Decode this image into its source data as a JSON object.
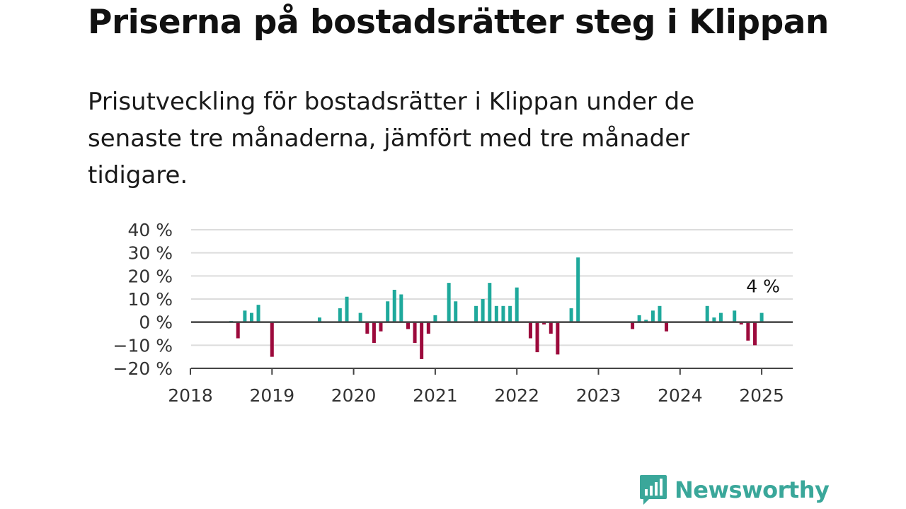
{
  "header": {
    "title": "Priserna på bostadsrätter steg i Klippan",
    "subtitle": "Prisutveckling för bostadsrätter i Klippan under de senaste tre månaderna, jämfört med tre månader tidigare."
  },
  "brand": {
    "name": "Newsworthy",
    "icon": "newsworthy-logo-icon",
    "color": "#3aa79a"
  },
  "chart_data": {
    "type": "bar",
    "y_tick_labels": [
      "40 %",
      "30 %",
      "20 %",
      "10 %",
      "0 %",
      "−10 %",
      "−20 %"
    ],
    "y_ticks": [
      40,
      30,
      20,
      10,
      0,
      -10,
      -20
    ],
    "x_tick_labels": [
      "2018",
      "2019",
      "2020",
      "2021",
      "2022",
      "2023",
      "2024",
      "2025"
    ],
    "ylim": [
      -20,
      40
    ],
    "xlim": [
      2018,
      2025.4
    ],
    "grid": true,
    "colors": {
      "positive": "#1fa99c",
      "negative": "#9c0a3c"
    },
    "annotation": {
      "text": "4 %",
      "x": 2025.0,
      "y": 4
    },
    "series": [
      {
        "x": [
          2018.5,
          2018.583,
          2018.667,
          2018.75,
          2018.833,
          2019.0,
          2019.583,
          2019.833,
          2019.917,
          2020.083,
          2020.167,
          2020.25,
          2020.333,
          2020.417,
          2020.5,
          2020.583,
          2020.667,
          2020.75,
          2020.833,
          2020.917,
          2021.0,
          2021.167,
          2021.25,
          2021.5,
          2021.583,
          2021.667,
          2021.75,
          2021.833,
          2021.917,
          2022.0,
          2022.167,
          2022.25,
          2022.333,
          2022.417,
          2022.5,
          2022.667,
          2022.75,
          2023.417,
          2023.5,
          2023.583,
          2023.667,
          2023.75,
          2023.833,
          2024.333,
          2024.417,
          2024.5,
          2024.667,
          2024.75,
          2024.833,
          2024.917,
          2025.0
        ],
        "values": [
          0.5,
          -7,
          5,
          4,
          7.5,
          -15,
          2,
          6,
          11,
          4,
          -5,
          -9,
          -4,
          9,
          14,
          12,
          -3,
          -9,
          -16,
          -5,
          3,
          17,
          9,
          7,
          10,
          17,
          7,
          7,
          7,
          15,
          -7,
          -13,
          -1,
          -5,
          -14,
          6,
          28,
          -3,
          3,
          1,
          5,
          7,
          -4,
          7,
          2,
          4,
          5,
          -1,
          -8,
          -10,
          4
        ]
      }
    ]
  }
}
